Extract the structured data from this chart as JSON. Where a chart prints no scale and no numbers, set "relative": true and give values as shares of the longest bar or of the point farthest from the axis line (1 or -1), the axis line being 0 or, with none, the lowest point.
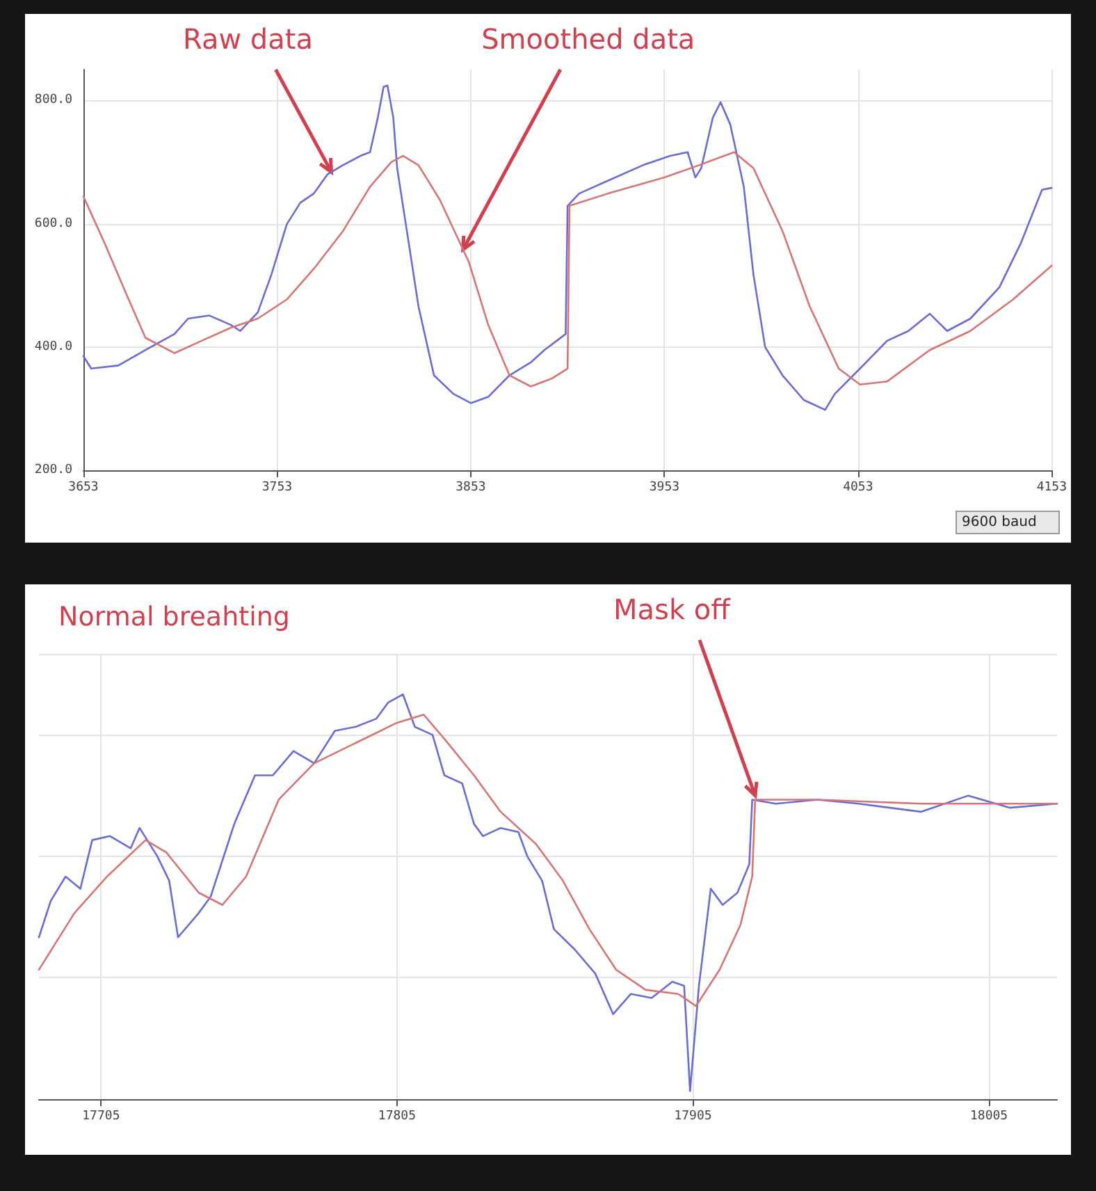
{
  "chart_data": [
    {
      "type": "line",
      "xlim": [
        3653,
        4153
      ],
      "xticks": [
        3653,
        3753,
        3853,
        3953,
        4053,
        4153
      ],
      "ylim": [
        200,
        850
      ],
      "yticks": [
        {
          "value": 200,
          "label": "200.0"
        },
        {
          "value": 400,
          "label": "400.0"
        },
        {
          "value": 600,
          "label": "600.0"
        },
        {
          "value": 800,
          "label": "800.0"
        }
      ],
      "grid": true,
      "marker": "none",
      "line_style": "solid",
      "annotations": [
        {
          "text": "Raw data",
          "x": 3781,
          "y": 684
        },
        {
          "text": "Smoothed data",
          "x": 3849,
          "y": 558
        },
        "9600 baud"
      ],
      "series": [
        {
          "color": "#6b6bd6",
          "x": [
            3653,
            3657,
            3671,
            3685,
            3700,
            3707,
            3718,
            3729,
            3734,
            3743,
            3750,
            3758,
            3765,
            3772,
            3779,
            3787,
            3796,
            3801,
            3805,
            3808,
            3810,
            3813,
            3815,
            3821,
            3826,
            3834,
            3844,
            3853,
            3862,
            3873,
            3884,
            3891,
            3902,
            3903,
            3909,
            3924,
            3942,
            3956,
            3965,
            3969,
            3972,
            3978,
            3982,
            3987,
            3994,
            3999,
            4005,
            4014,
            4025,
            4036,
            4041,
            4054,
            4068,
            4079,
            4090,
            4099,
            4111,
            4126,
            4137,
            4148,
            4153
          ],
          "values": [
            385,
            365,
            370,
            395,
            421,
            446,
            451,
            436,
            426,
            456,
            517,
            599,
            634,
            649,
            680,
            695,
            710,
            716,
            772,
            822,
            824,
            772,
            690,
            568,
            466,
            354,
            324,
            309,
            319,
            354,
            375,
            395,
            421,
            629,
            649,
            670,
            695,
            710,
            716,
            675,
            690,
            772,
            797,
            761,
            660,
            517,
            400,
            354,
            314,
            298,
            324,
            365,
            410,
            426,
            454,
            426,
            446,
            497,
            568,
            655,
            658
          ]
        },
        {
          "color": "#d87474",
          "x": [
            3653,
            3664,
            3675,
            3685,
            3700,
            3714,
            3729,
            3743,
            3758,
            3772,
            3787,
            3801,
            3812,
            3818,
            3826,
            3837,
            3852,
            3862,
            3873,
            3884,
            3895,
            3903,
            3904,
            3924,
            3953,
            3971,
            3989,
            3999,
            4014,
            4028,
            4043,
            4054,
            4068,
            4090,
            4111,
            4133,
            4153
          ],
          "values": [
            644,
            568,
            487,
            415,
            390,
            410,
            431,
            446,
            477,
            527,
            588,
            660,
            700,
            710,
            695,
            639,
            538,
            436,
            354,
            336,
            349,
            365,
            629,
            649,
            675,
            695,
            716,
            690,
            588,
            466,
            365,
            339,
            344,
            395,
            426,
            477,
            532
          ]
        }
      ]
    },
    {
      "type": "line",
      "relative": true,
      "xlim": [
        17684,
        18028
      ],
      "xticks": [
        17705,
        17805,
        17905,
        18005
      ],
      "grid": true,
      "marker": "none",
      "line_style": "solid",
      "annotations": [
        "Normal breahting",
        {
          "text": "Mask off",
          "x": 17926,
          "y": 0.75
        }
      ],
      "series": [
        {
          "color": "#6b6bd6",
          "x": [
            17684,
            17688,
            17693,
            17698,
            17702,
            17708,
            17715,
            17718,
            17724,
            17728,
            17731,
            17738,
            17742,
            17750,
            17757,
            17763,
            17770,
            17777,
            17784,
            17791,
            17798,
            17802,
            17807,
            17811,
            17817,
            17821,
            17827,
            17831,
            17834,
            17840,
            17846,
            17849,
            17854,
            17858,
            17865,
            17872,
            17878,
            17884,
            17891,
            17898,
            17902,
            17904,
            17907,
            17911,
            17915,
            17920,
            17924,
            17925,
            17933,
            17947,
            17961,
            17982,
            17998,
            18012,
            18028
          ],
          "values": [
            0.4,
            0.49,
            0.55,
            0.52,
            0.64,
            0.65,
            0.62,
            0.67,
            0.6,
            0.54,
            0.4,
            0.46,
            0.5,
            0.68,
            0.8,
            0.8,
            0.86,
            0.83,
            0.91,
            0.92,
            0.94,
            0.98,
            1.0,
            0.92,
            0.9,
            0.8,
            0.78,
            0.68,
            0.65,
            0.67,
            0.66,
            0.6,
            0.54,
            0.42,
            0.37,
            0.31,
            0.21,
            0.26,
            0.25,
            0.29,
            0.28,
            0.02,
            0.28,
            0.52,
            0.48,
            0.51,
            0.58,
            0.74,
            0.73,
            0.74,
            0.73,
            0.71,
            0.75,
            0.72,
            0.73
          ]
        },
        {
          "color": "#d87474",
          "x": [
            17684,
            17696,
            17707,
            17720,
            17727,
            17738,
            17746,
            17754,
            17765,
            17777,
            17791,
            17805,
            17814,
            17821,
            17831,
            17840,
            17852,
            17861,
            17870,
            17879,
            17889,
            17900,
            17906,
            17914,
            17921,
            17925,
            17926,
            17947,
            17982,
            18028
          ],
          "values": [
            0.32,
            0.46,
            0.55,
            0.64,
            0.61,
            0.51,
            0.48,
            0.55,
            0.74,
            0.83,
            0.88,
            0.93,
            0.95,
            0.89,
            0.8,
            0.71,
            0.63,
            0.54,
            0.42,
            0.32,
            0.27,
            0.26,
            0.23,
            0.32,
            0.43,
            0.55,
            0.74,
            0.74,
            0.73,
            0.73
          ]
        }
      ]
    }
  ]
}
